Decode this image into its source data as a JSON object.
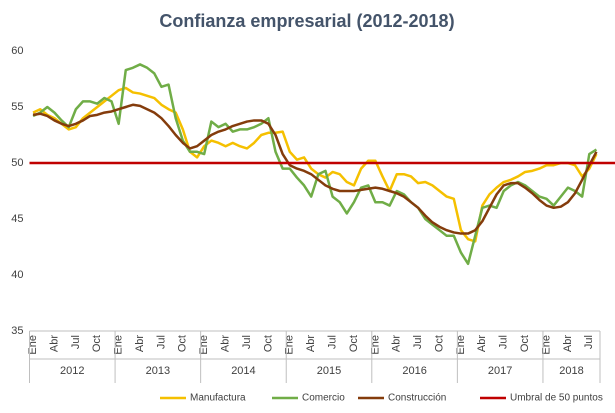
{
  "chart_data": {
    "type": "line",
    "title": "Confianza empresarial (2012-2018)",
    "categories": [
      "Ene",
      null,
      null,
      "Abr",
      null,
      null,
      "Jul",
      null,
      null,
      "Oct",
      null,
      null,
      "Ene",
      null,
      null,
      "Abr",
      null,
      null,
      "Jul",
      null,
      null,
      "Oct",
      null,
      null,
      "Ene",
      null,
      null,
      "Abr",
      null,
      null,
      "Jul",
      null,
      null,
      "Oct",
      null,
      null,
      "Ene",
      null,
      null,
      "Abr",
      null,
      null,
      "Jul",
      null,
      null,
      "Oct",
      null,
      null,
      "Ene",
      null,
      null,
      "Abr",
      null,
      null,
      "Jul",
      null,
      null,
      "Oct",
      null,
      null,
      "Ene",
      null,
      null,
      "Abr",
      null,
      null,
      "Jul",
      null,
      null,
      "Oct",
      null,
      null,
      "Ene",
      null,
      null,
      "Abr",
      null,
      null,
      "Jul",
      null
    ],
    "years": [
      "2012",
      "2013",
      "2014",
      "2015",
      "2016",
      "2017",
      "2018"
    ],
    "series": [
      {
        "name": "Manufactura",
        "color": "#f5c000",
        "values": [
          54.5,
          54.8,
          54.3,
          54.0,
          53.5,
          53.0,
          53.2,
          54.0,
          54.5,
          55.0,
          55.5,
          56.0,
          56.5,
          56.7,
          56.3,
          56.2,
          56.0,
          55.8,
          55.2,
          54.8,
          54.5,
          53.0,
          51.0,
          50.5,
          51.5,
          52.0,
          51.8,
          51.5,
          51.8,
          51.5,
          51.3,
          51.8,
          52.5,
          52.7,
          52.7,
          52.8,
          51.0,
          50.3,
          50.5,
          49.5,
          49.0,
          48.7,
          49.2,
          49.0,
          48.3,
          48.0,
          49.5,
          50.2,
          50.2,
          48.8,
          47.5,
          49.0,
          49.0,
          48.8,
          48.2,
          48.3,
          48.0,
          47.5,
          47.0,
          46.8,
          44.0,
          43.2,
          43.0,
          46.2,
          47.2,
          47.8,
          48.3,
          48.5,
          48.8,
          49.2,
          49.3,
          49.5,
          49.8,
          49.8,
          50.0,
          50.0,
          49.8,
          48.8,
          49.5,
          50.8
        ]
      },
      {
        "name": "Comercio",
        "color": "#70ad47",
        "values": [
          54.2,
          54.5,
          55.0,
          54.5,
          53.8,
          53.2,
          54.8,
          55.5,
          55.5,
          55.3,
          55.8,
          55.5,
          53.5,
          58.3,
          58.5,
          58.8,
          58.5,
          58.0,
          56.8,
          57.0,
          54.0,
          52.0,
          51.0,
          51.0,
          50.8,
          53.7,
          53.2,
          53.5,
          52.8,
          53.0,
          53.0,
          53.2,
          53.5,
          54.0,
          51.0,
          49.5,
          49.5,
          48.7,
          48.0,
          47.0,
          49.0,
          49.3,
          47.0,
          46.5,
          45.5,
          46.5,
          47.8,
          48.0,
          46.5,
          46.5,
          46.2,
          47.5,
          47.2,
          46.5,
          46.0,
          45.0,
          44.5,
          44.0,
          43.5,
          43.5,
          42.0,
          41.0,
          43.5,
          46.0,
          46.2,
          46.0,
          47.5,
          48.0,
          48.3,
          48.0,
          47.5,
          47.0,
          46.8,
          46.2,
          47.0,
          47.8,
          47.5,
          47.0,
          50.8,
          51.2
        ]
      },
      {
        "name": "Construcción",
        "color": "#843c0c",
        "values": [
          54.3,
          54.4,
          54.2,
          53.8,
          53.5,
          53.3,
          53.5,
          53.8,
          54.2,
          54.3,
          54.5,
          54.6,
          54.8,
          55.0,
          55.2,
          55.1,
          54.8,
          54.5,
          54.0,
          53.3,
          52.5,
          51.8,
          51.3,
          51.5,
          52.0,
          52.5,
          52.8,
          53.0,
          53.3,
          53.5,
          53.7,
          53.8,
          53.8,
          53.5,
          52.5,
          50.8,
          49.8,
          49.5,
          49.3,
          49.0,
          48.5,
          48.0,
          47.7,
          47.5,
          47.5,
          47.5,
          47.6,
          47.7,
          47.8,
          47.7,
          47.5,
          47.3,
          47.0,
          46.5,
          46.0,
          45.3,
          44.7,
          44.3,
          44.0,
          43.8,
          43.7,
          43.7,
          44.0,
          44.8,
          46.0,
          47.2,
          48.0,
          48.2,
          48.2,
          47.8,
          47.3,
          46.7,
          46.2,
          46.0,
          46.1,
          46.5,
          47.3,
          48.5,
          49.8,
          51.0
        ]
      }
    ],
    "reference_line": {
      "name": "Umbral de 50 puntos",
      "value": 50,
      "color": "#c00000"
    },
    "ylim": [
      35,
      60
    ],
    "yticks": [
      35,
      40,
      45,
      50,
      55,
      60
    ],
    "grid": false
  }
}
